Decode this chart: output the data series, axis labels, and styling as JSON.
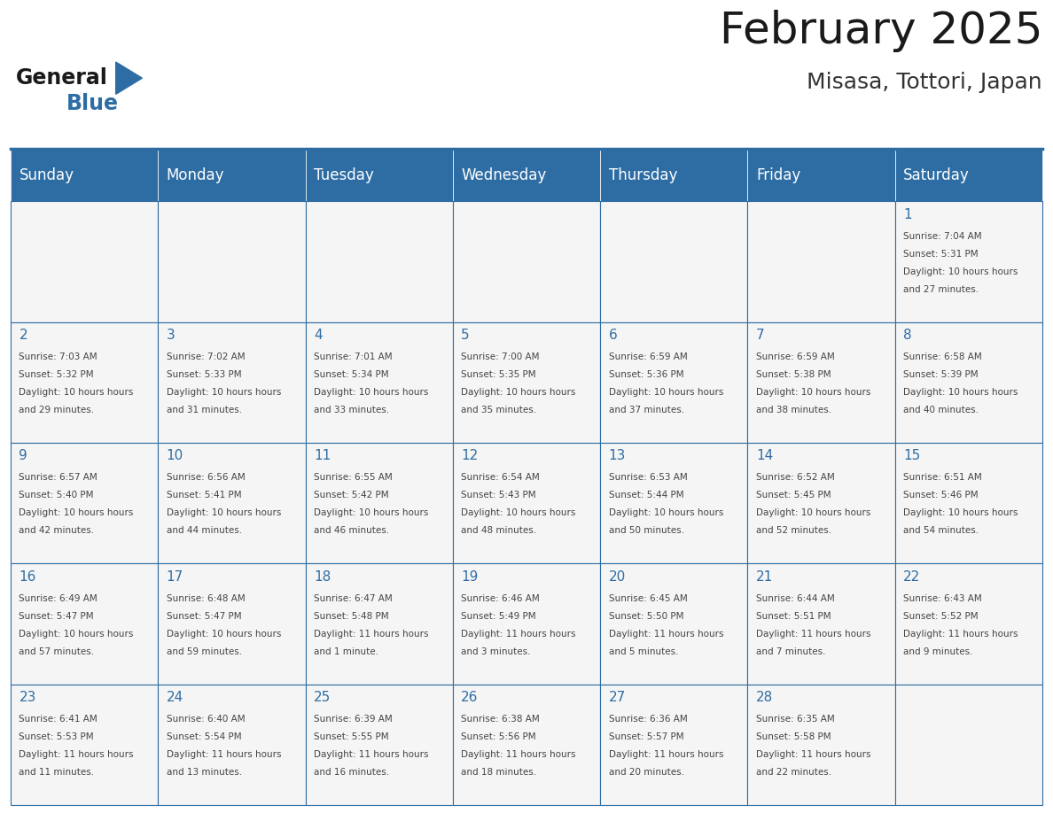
{
  "title": "February 2025",
  "subtitle": "Misasa, Tottori, Japan",
  "days_of_week": [
    "Sunday",
    "Monday",
    "Tuesday",
    "Wednesday",
    "Thursday",
    "Friday",
    "Saturday"
  ],
  "header_bg": "#2e6da4",
  "header_text": "#ffffff",
  "cell_bg": "#f5f5f5",
  "border_color": "#2e6da4",
  "day_number_color": "#2e6da4",
  "cell_text_color": "#444444",
  "title_color": "#1a1a1a",
  "subtitle_color": "#333333",
  "logo_general_color": "#1a1a1a",
  "logo_blue_color": "#2e6da4",
  "weeks": [
    [
      null,
      null,
      null,
      null,
      null,
      null,
      1
    ],
    [
      2,
      3,
      4,
      5,
      6,
      7,
      8
    ],
    [
      9,
      10,
      11,
      12,
      13,
      14,
      15
    ],
    [
      16,
      17,
      18,
      19,
      20,
      21,
      22
    ],
    [
      23,
      24,
      25,
      26,
      27,
      28,
      null
    ]
  ],
  "day_data": {
    "1": {
      "sunrise": "7:04 AM",
      "sunset": "5:31 PM",
      "daylight": "10 hours and 27 minutes"
    },
    "2": {
      "sunrise": "7:03 AM",
      "sunset": "5:32 PM",
      "daylight": "10 hours and 29 minutes"
    },
    "3": {
      "sunrise": "7:02 AM",
      "sunset": "5:33 PM",
      "daylight": "10 hours and 31 minutes"
    },
    "4": {
      "sunrise": "7:01 AM",
      "sunset": "5:34 PM",
      "daylight": "10 hours and 33 minutes"
    },
    "5": {
      "sunrise": "7:00 AM",
      "sunset": "5:35 PM",
      "daylight": "10 hours and 35 minutes"
    },
    "6": {
      "sunrise": "6:59 AM",
      "sunset": "5:36 PM",
      "daylight": "10 hours and 37 minutes"
    },
    "7": {
      "sunrise": "6:59 AM",
      "sunset": "5:38 PM",
      "daylight": "10 hours and 38 minutes"
    },
    "8": {
      "sunrise": "6:58 AM",
      "sunset": "5:39 PM",
      "daylight": "10 hours and 40 minutes"
    },
    "9": {
      "sunrise": "6:57 AM",
      "sunset": "5:40 PM",
      "daylight": "10 hours and 42 minutes"
    },
    "10": {
      "sunrise": "6:56 AM",
      "sunset": "5:41 PM",
      "daylight": "10 hours and 44 minutes"
    },
    "11": {
      "sunrise": "6:55 AM",
      "sunset": "5:42 PM",
      "daylight": "10 hours and 46 minutes"
    },
    "12": {
      "sunrise": "6:54 AM",
      "sunset": "5:43 PM",
      "daylight": "10 hours and 48 minutes"
    },
    "13": {
      "sunrise": "6:53 AM",
      "sunset": "5:44 PM",
      "daylight": "10 hours and 50 minutes"
    },
    "14": {
      "sunrise": "6:52 AM",
      "sunset": "5:45 PM",
      "daylight": "10 hours and 52 minutes"
    },
    "15": {
      "sunrise": "6:51 AM",
      "sunset": "5:46 PM",
      "daylight": "10 hours and 54 minutes"
    },
    "16": {
      "sunrise": "6:49 AM",
      "sunset": "5:47 PM",
      "daylight": "10 hours and 57 minutes"
    },
    "17": {
      "sunrise": "6:48 AM",
      "sunset": "5:47 PM",
      "daylight": "10 hours and 59 minutes"
    },
    "18": {
      "sunrise": "6:47 AM",
      "sunset": "5:48 PM",
      "daylight": "11 hours and 1 minute"
    },
    "19": {
      "sunrise": "6:46 AM",
      "sunset": "5:49 PM",
      "daylight": "11 hours and 3 minutes"
    },
    "20": {
      "sunrise": "6:45 AM",
      "sunset": "5:50 PM",
      "daylight": "11 hours and 5 minutes"
    },
    "21": {
      "sunrise": "6:44 AM",
      "sunset": "5:51 PM",
      "daylight": "11 hours and 7 minutes"
    },
    "22": {
      "sunrise": "6:43 AM",
      "sunset": "5:52 PM",
      "daylight": "11 hours and 9 minutes"
    },
    "23": {
      "sunrise": "6:41 AM",
      "sunset": "5:53 PM",
      "daylight": "11 hours and 11 minutes"
    },
    "24": {
      "sunrise": "6:40 AM",
      "sunset": "5:54 PM",
      "daylight": "11 hours and 13 minutes"
    },
    "25": {
      "sunrise": "6:39 AM",
      "sunset": "5:55 PM",
      "daylight": "11 hours and 16 minutes"
    },
    "26": {
      "sunrise": "6:38 AM",
      "sunset": "5:56 PM",
      "daylight": "11 hours and 18 minutes"
    },
    "27": {
      "sunrise": "6:36 AM",
      "sunset": "5:57 PM",
      "daylight": "11 hours and 20 minutes"
    },
    "28": {
      "sunrise": "6:35 AM",
      "sunset": "5:58 PM",
      "daylight": "11 hours and 22 minutes"
    }
  }
}
